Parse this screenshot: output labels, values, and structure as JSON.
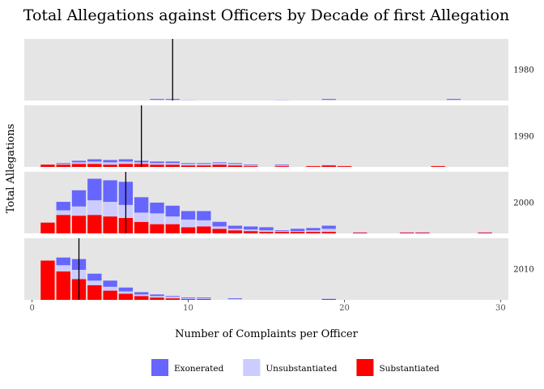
{
  "chart_data": {
    "type": "bar",
    "subtype": "stacked-histogram-faceted",
    "title": "Total Allegations against Officers by Decade of first Allegation",
    "xlabel": "Number of Complaints per Officer",
    "ylabel": "Total Allegations",
    "xlim": [
      -0.5,
      30.5
    ],
    "x_ticks": [
      0,
      10,
      20,
      30
    ],
    "grid": false,
    "legend_position": "bottom",
    "series": [
      {
        "name": "Exonerated",
        "color": "#6666ff"
      },
      {
        "name": "Unsubstantiated",
        "color": "#ccccff"
      },
      {
        "name": "Substantiated",
        "color": "#ff0000"
      }
    ],
    "panels": [
      {
        "label": "1980",
        "ymax": 80,
        "median": 9,
        "bars": [
          {
            "x": 8,
            "Exonerated": 1,
            "Unsubstantiated": 1,
            "Substantiated": 0
          },
          {
            "x": 9,
            "Exonerated": 1,
            "Unsubstantiated": 1,
            "Substantiated": 0
          },
          {
            "x": 10,
            "Exonerated": 0,
            "Unsubstantiated": 1,
            "Substantiated": 0
          },
          {
            "x": 16,
            "Exonerated": 0,
            "Unsubstantiated": 1,
            "Substantiated": 0
          },
          {
            "x": 19,
            "Exonerated": 1,
            "Unsubstantiated": 1,
            "Substantiated": 0
          },
          {
            "x": 27,
            "Exonerated": 1,
            "Unsubstantiated": 1,
            "Substantiated": 0
          }
        ]
      },
      {
        "label": "1990",
        "ymax": 80,
        "median": 7,
        "bars": [
          {
            "x": 1,
            "Exonerated": 0,
            "Unsubstantiated": 0,
            "Substantiated": 3
          },
          {
            "x": 2,
            "Exonerated": 1,
            "Unsubstantiated": 1,
            "Substantiated": 3
          },
          {
            "x": 3,
            "Exonerated": 2,
            "Unsubstantiated": 2,
            "Substantiated": 4
          },
          {
            "x": 4,
            "Exonerated": 3,
            "Unsubstantiated": 3,
            "Substantiated": 4
          },
          {
            "x": 5,
            "Exonerated": 3,
            "Unsubstantiated": 3,
            "Substantiated": 3
          },
          {
            "x": 6,
            "Exonerated": 3,
            "Unsubstantiated": 3,
            "Substantiated": 4
          },
          {
            "x": 7,
            "Exonerated": 2,
            "Unsubstantiated": 2,
            "Substantiated": 4
          },
          {
            "x": 8,
            "Exonerated": 2,
            "Unsubstantiated": 2,
            "Substantiated": 3
          },
          {
            "x": 9,
            "Exonerated": 2,
            "Unsubstantiated": 2,
            "Substantiated": 3
          },
          {
            "x": 10,
            "Exonerated": 1,
            "Unsubstantiated": 2,
            "Substantiated": 2
          },
          {
            "x": 11,
            "Exonerated": 1,
            "Unsubstantiated": 2,
            "Substantiated": 2
          },
          {
            "x": 12,
            "Exonerated": 1,
            "Unsubstantiated": 2,
            "Substantiated": 3
          },
          {
            "x": 13,
            "Exonerated": 1,
            "Unsubstantiated": 2,
            "Substantiated": 2
          },
          {
            "x": 14,
            "Exonerated": 1,
            "Unsubstantiated": 1,
            "Substantiated": 1
          },
          {
            "x": 16,
            "Exonerated": 1,
            "Unsubstantiated": 1,
            "Substantiated": 1
          },
          {
            "x": 18,
            "Exonerated": 0,
            "Unsubstantiated": 1,
            "Substantiated": 1
          },
          {
            "x": 19,
            "Exonerated": 0,
            "Unsubstantiated": 1,
            "Substantiated": 2
          },
          {
            "x": 20,
            "Exonerated": 0,
            "Unsubstantiated": 1,
            "Substantiated": 1
          },
          {
            "x": 26,
            "Exonerated": 0,
            "Unsubstantiated": 1,
            "Substantiated": 1
          }
        ]
      },
      {
        "label": "2000",
        "ymax": 80,
        "median": 6,
        "bars": [
          {
            "x": 1,
            "Exonerated": 0,
            "Unsubstantiated": 0,
            "Substantiated": 14
          },
          {
            "x": 2,
            "Exonerated": 11,
            "Unsubstantiated": 6,
            "Substantiated": 24
          },
          {
            "x": 3,
            "Exonerated": 21,
            "Unsubstantiated": 12,
            "Substantiated": 23
          },
          {
            "x": 4,
            "Exonerated": 28,
            "Unsubstantiated": 19,
            "Substantiated": 24
          },
          {
            "x": 5,
            "Exonerated": 28,
            "Unsubstantiated": 19,
            "Substantiated": 22
          },
          {
            "x": 6,
            "Exonerated": 30,
            "Unsubstantiated": 17,
            "Substantiated": 20
          },
          {
            "x": 7,
            "Exonerated": 20,
            "Unsubstantiated": 12,
            "Substantiated": 15
          },
          {
            "x": 8,
            "Exonerated": 14,
            "Unsubstantiated": 14,
            "Substantiated": 12
          },
          {
            "x": 9,
            "Exonerated": 14,
            "Unsubstantiated": 10,
            "Substantiated": 12
          },
          {
            "x": 10,
            "Exonerated": 11,
            "Unsubstantiated": 10,
            "Substantiated": 8
          },
          {
            "x": 11,
            "Exonerated": 12,
            "Unsubstantiated": 8,
            "Substantiated": 9
          },
          {
            "x": 12,
            "Exonerated": 6,
            "Unsubstantiated": 3,
            "Substantiated": 6
          },
          {
            "x": 13,
            "Exonerated": 4,
            "Unsubstantiated": 2,
            "Substantiated": 4
          },
          {
            "x": 14,
            "Exonerated": 4,
            "Unsubstantiated": 2,
            "Substantiated": 3
          },
          {
            "x": 15,
            "Exonerated": 4,
            "Unsubstantiated": 2,
            "Substantiated": 2
          },
          {
            "x": 16,
            "Exonerated": 1,
            "Unsubstantiated": 1,
            "Substantiated": 2
          },
          {
            "x": 17,
            "Exonerated": 3,
            "Unsubstantiated": 1,
            "Substantiated": 2
          },
          {
            "x": 18,
            "Exonerated": 3,
            "Unsubstantiated": 2,
            "Substantiated": 2
          },
          {
            "x": 19,
            "Exonerated": 4,
            "Unsubstantiated": 4,
            "Substantiated": 2
          },
          {
            "x": 21,
            "Exonerated": 0,
            "Unsubstantiated": 1,
            "Substantiated": 1
          },
          {
            "x": 24,
            "Exonerated": 0,
            "Unsubstantiated": 1,
            "Substantiated": 1
          },
          {
            "x": 25,
            "Exonerated": 0,
            "Unsubstantiated": 1,
            "Substantiated": 1
          },
          {
            "x": 29,
            "Exonerated": 0,
            "Unsubstantiated": 1,
            "Substantiated": 1
          }
        ]
      },
      {
        "label": "2010",
        "ymax": 80,
        "median": 3,
        "bars": [
          {
            "x": 1,
            "Exonerated": 0,
            "Unsubstantiated": 0,
            "Substantiated": 51
          },
          {
            "x": 2,
            "Exonerated": 10,
            "Unsubstantiated": 8,
            "Substantiated": 37
          },
          {
            "x": 3,
            "Exonerated": 14,
            "Unsubstantiated": 12,
            "Substantiated": 27
          },
          {
            "x": 4,
            "Exonerated": 9,
            "Unsubstantiated": 6,
            "Substantiated": 19
          },
          {
            "x": 5,
            "Exonerated": 8,
            "Unsubstantiated": 5,
            "Substantiated": 12
          },
          {
            "x": 6,
            "Exonerated": 5,
            "Unsubstantiated": 3,
            "Substantiated": 8
          },
          {
            "x": 7,
            "Exonerated": 3,
            "Unsubstantiated": 2,
            "Substantiated": 5
          },
          {
            "x": 8,
            "Exonerated": 2,
            "Unsubstantiated": 2,
            "Substantiated": 3
          },
          {
            "x": 9,
            "Exonerated": 1,
            "Unsubstantiated": 2,
            "Substantiated": 2
          },
          {
            "x": 10,
            "Exonerated": 1,
            "Unsubstantiated": 1,
            "Substantiated": 1
          },
          {
            "x": 11,
            "Exonerated": 1,
            "Unsubstantiated": 1,
            "Substantiated": 1
          },
          {
            "x": 13,
            "Exonerated": 1,
            "Unsubstantiated": 1,
            "Substantiated": 0
          },
          {
            "x": 19,
            "Exonerated": 0,
            "Unsubstantiated": 1,
            "Substantiated": 1
          }
        ]
      }
    ]
  }
}
